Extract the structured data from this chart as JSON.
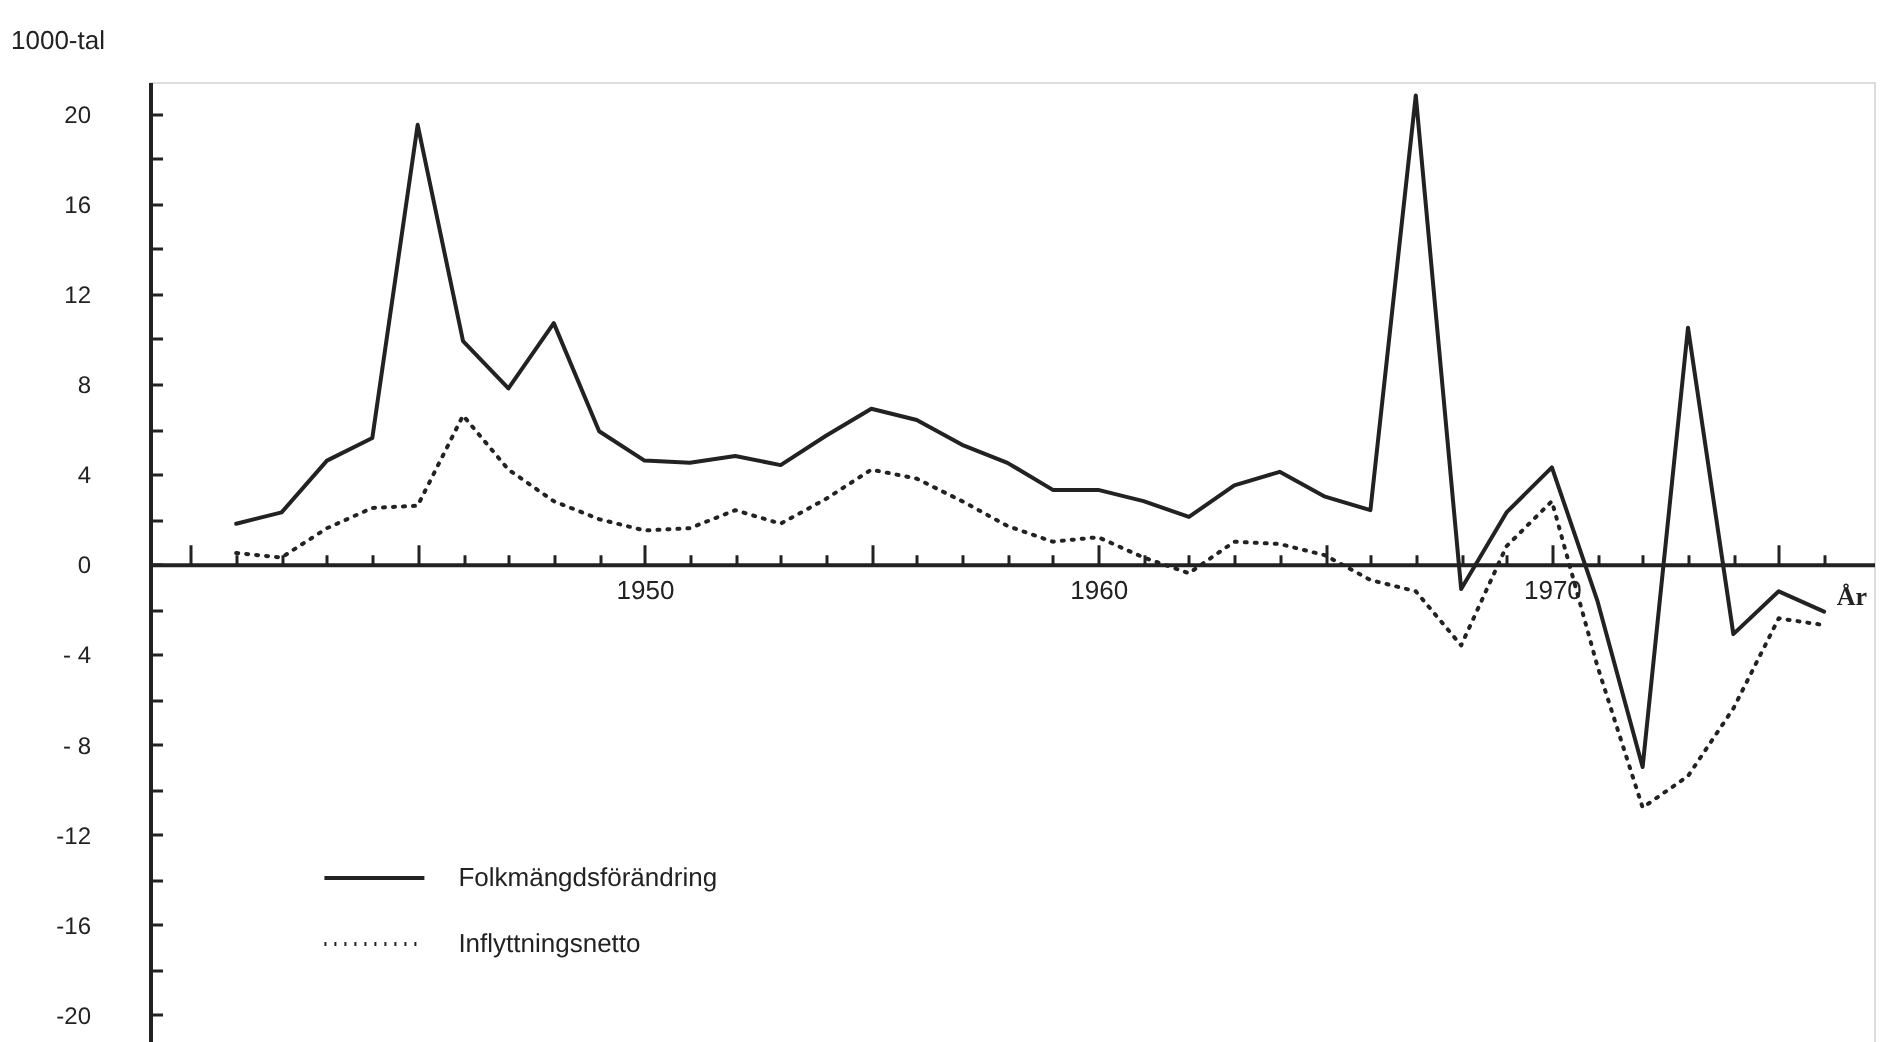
{
  "chart_data": {
    "type": "line",
    "ylabel": "1000-tal",
    "xlabel": "År",
    "x": [
      1941,
      1942,
      1943,
      1944,
      1945,
      1946,
      1947,
      1948,
      1949,
      1950,
      1951,
      1952,
      1953,
      1954,
      1955,
      1956,
      1957,
      1958,
      1959,
      1960,
      1961,
      1962,
      1963,
      1964,
      1965,
      1966,
      1967,
      1968,
      1969,
      1970,
      1971,
      1972,
      1973,
      1974,
      1975,
      1976
    ],
    "series": [
      {
        "name": "Folkmängdsförändring",
        "color": "#222222",
        "line_style": "solid",
        "values": [
          1.8,
          2.3,
          4.6,
          5.6,
          19.5,
          9.9,
          7.8,
          10.7,
          5.9,
          4.6,
          4.5,
          4.8,
          4.4,
          5.7,
          6.9,
          6.4,
          5.3,
          4.5,
          3.3,
          3.3,
          2.8,
          2.1,
          3.5,
          4.1,
          3.0,
          2.4,
          20.8,
          -1.1,
          2.3,
          4.3,
          -1.6,
          -9.0,
          10.5,
          -3.1,
          -1.2,
          -2.1
        ]
      },
      {
        "name": "Inflyttningsnetto",
        "color": "#222222",
        "line_style": "dotted",
        "values": [
          0.5,
          0.3,
          1.6,
          2.5,
          2.6,
          6.6,
          4.2,
          2.8,
          2.0,
          1.5,
          1.6,
          2.4,
          1.8,
          2.9,
          4.2,
          3.8,
          2.8,
          1.7,
          1.0,
          1.2,
          0.3,
          -0.4,
          1.0,
          0.9,
          0.4,
          -0.7,
          -1.2,
          -3.6,
          0.8,
          2.8,
          -4.5,
          -10.8,
          -9.4,
          -6.4,
          -2.4,
          -2.7
        ]
      }
    ],
    "xlim": [
      1939.1,
      1977.1
    ],
    "ylim": [
      -21.2,
      21.4
    ],
    "xticks": [
      {
        "value": 1940,
        "label": null
      },
      {
        "value": 1941,
        "label": null
      },
      {
        "value": 1942,
        "label": null
      },
      {
        "value": 1943,
        "label": null
      },
      {
        "value": 1944,
        "label": null
      },
      {
        "value": 1945,
        "label": null
      },
      {
        "value": 1946,
        "label": null
      },
      {
        "value": 1947,
        "label": null
      },
      {
        "value": 1948,
        "label": null
      },
      {
        "value": 1949,
        "label": null
      },
      1950,
      {
        "value": 1951,
        "label": null
      },
      {
        "value": 1952,
        "label": null
      },
      {
        "value": 1953,
        "label": null
      },
      {
        "value": 1954,
        "label": null
      },
      {
        "value": 1955,
        "label": null
      },
      {
        "value": 1956,
        "label": null
      },
      {
        "value": 1957,
        "label": null
      },
      {
        "value": 1958,
        "label": null
      },
      {
        "value": 1959,
        "label": null
      },
      1960,
      {
        "value": 1961,
        "label": null
      },
      {
        "value": 1962,
        "label": null
      },
      {
        "value": 1963,
        "label": null
      },
      {
        "value": 1964,
        "label": null
      },
      {
        "value": 1965,
        "label": null
      },
      {
        "value": 1966,
        "label": null
      },
      {
        "value": 1967,
        "label": null
      },
      {
        "value": 1968,
        "label": null
      },
      {
        "value": 1969,
        "label": null
      },
      1970,
      {
        "value": 1971,
        "label": null
      },
      {
        "value": 1972,
        "label": null
      },
      {
        "value": 1973,
        "label": null
      },
      {
        "value": 1974,
        "label": null
      },
      {
        "value": 1975,
        "label": null
      },
      {
        "value": 1976,
        "label": null
      }
    ],
    "yticks": [
      {
        "value": -20,
        "label": "-20"
      },
      {
        "value": -18,
        "label": null
      },
      {
        "value": -16,
        "label": "-16"
      },
      {
        "value": -14,
        "label": null
      },
      {
        "value": -12,
        "label": "-12"
      },
      {
        "value": -10,
        "label": null
      },
      {
        "value": -8,
        "label": "- 8"
      },
      {
        "value": -6,
        "label": null
      },
      {
        "value": -4,
        "label": "- 4"
      },
      {
        "value": -2,
        "label": null
      },
      0,
      {
        "value": 2,
        "label": null
      },
      4,
      {
        "value": 6,
        "label": null
      },
      8,
      {
        "value": 10,
        "label": null
      },
      12,
      {
        "value": 14,
        "label": null
      },
      16,
      {
        "value": 18,
        "label": null
      },
      20
    ],
    "grid": false,
    "legend": "bottom left"
  }
}
